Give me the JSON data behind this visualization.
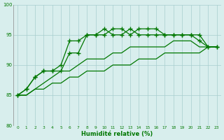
{
  "x": [
    0,
    1,
    2,
    3,
    4,
    5,
    6,
    7,
    8,
    9,
    10,
    11,
    12,
    13,
    14,
    15,
    16,
    17,
    18,
    19,
    20,
    21,
    22,
    23
  ],
  "line1": [
    85,
    86,
    88,
    89,
    89,
    90,
    94,
    94,
    95,
    95,
    96,
    95,
    95,
    96,
    95,
    95,
    95,
    95,
    95,
    95,
    95,
    94,
    93,
    93
  ],
  "line2": [
    85,
    86,
    88,
    89,
    89,
    89,
    92,
    92,
    95,
    95,
    95,
    96,
    96,
    95,
    96,
    96,
    96,
    95,
    95,
    95,
    95,
    95,
    93,
    93
  ],
  "line3": [
    85,
    85,
    86,
    87,
    88,
    89,
    89,
    90,
    91,
    91,
    91,
    92,
    92,
    93,
    93,
    93,
    93,
    93,
    94,
    94,
    94,
    93,
    93,
    93
  ],
  "line4": [
    85,
    85,
    86,
    86,
    87,
    87,
    88,
    88,
    89,
    89,
    89,
    90,
    90,
    90,
    91,
    91,
    91,
    92,
    92,
    92,
    92,
    92,
    93,
    93
  ],
  "bg_color": "#d8eeed",
  "grid_color": "#a8cece",
  "line_color": "#007700",
  "xlabel": "Humidité relative (%)",
  "ylim": [
    80,
    100
  ],
  "xlim": [
    -0.5,
    23.5
  ],
  "yticks": [
    80,
    85,
    90,
    95,
    100
  ],
  "xticks": [
    0,
    1,
    2,
    3,
    4,
    5,
    6,
    7,
    8,
    9,
    10,
    11,
    12,
    13,
    14,
    15,
    16,
    17,
    18,
    19,
    20,
    21,
    22,
    23
  ]
}
